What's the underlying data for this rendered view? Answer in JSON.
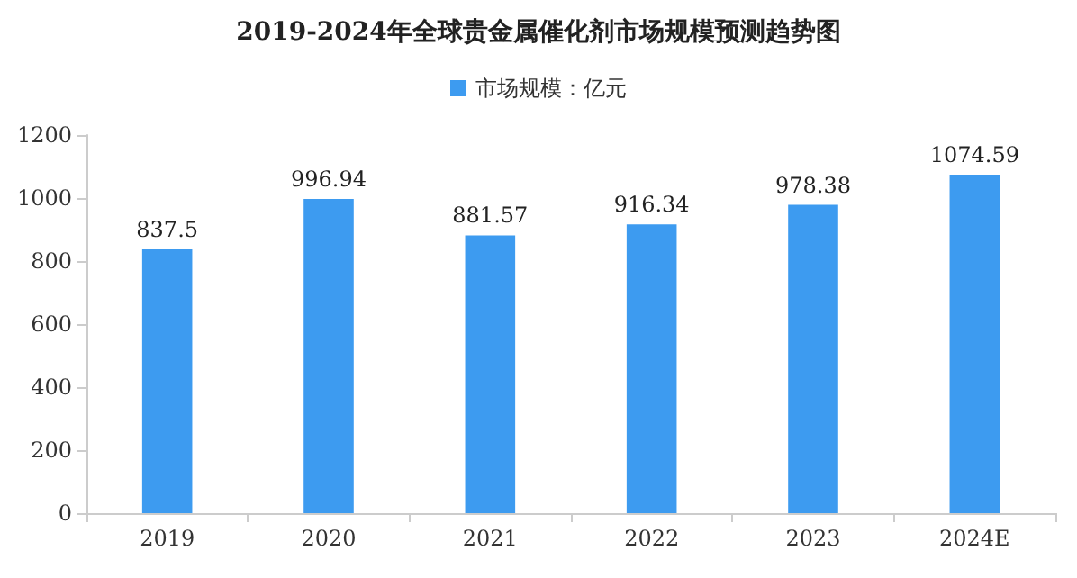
{
  "chart_data": {
    "type": "bar",
    "title": "2019-2024年全球贵金属催化剂市场规模预测趋势图",
    "categories": [
      "2019",
      "2020",
      "2021",
      "2022",
      "2023",
      "2024E"
    ],
    "series": [
      {
        "name": "市场规模：亿元",
        "color": "#3d9bf0",
        "values": [
          837.5,
          996.94,
          881.57,
          916.34,
          978.38,
          1074.59
        ]
      }
    ],
    "ylim": [
      0,
      1200
    ],
    "yticks": [
      0,
      200,
      400,
      600,
      800,
      1000,
      1200
    ],
    "data_labels": true,
    "legend": "top",
    "grid": false
  }
}
